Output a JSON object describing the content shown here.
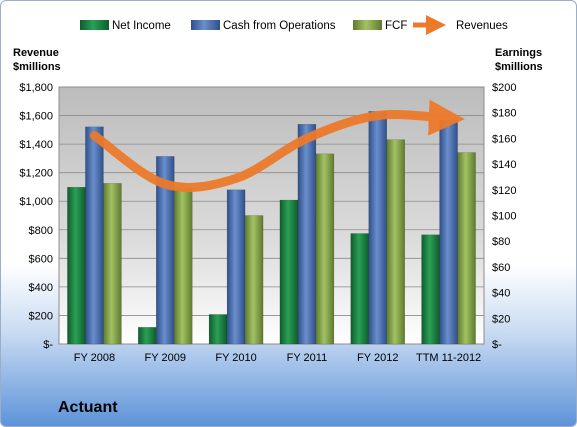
{
  "company_name": "Actuant",
  "colors": {
    "net_income": "#1e8a45",
    "cash_from_operations": "#4f75b8",
    "fcf": "#86a84c",
    "revenues": "#ec7a2a"
  },
  "chart_data": {
    "type": "bar",
    "categories": [
      "FY 2008",
      "FY 2009",
      "FY 2010",
      "FY 2011",
      "FY 2012",
      "TTM 11-2012"
    ],
    "left_axis": {
      "title_line1": "Revenue",
      "title_line2": "$millions",
      "ylim": [
        0,
        1800
      ],
      "ticks": [
        "$-",
        "$200",
        "$400",
        "$600",
        "$800",
        "$1,000",
        "$1,200",
        "$1,400",
        "$1,600",
        "$1,800"
      ]
    },
    "right_axis": {
      "title_line1": "Earnings",
      "title_line2": "$millions",
      "ylim": [
        0,
        200
      ],
      "ticks": [
        "$-",
        "$20",
        "$40",
        "$60",
        "$80",
        "$100",
        "$120",
        "$140",
        "$160",
        "$180",
        "$200"
      ]
    },
    "series": [
      {
        "name": "Net Income",
        "kind": "bar",
        "axis": "right",
        "values": [
          122,
          13,
          23,
          112,
          86,
          85
        ]
      },
      {
        "name": "Cash from Operations",
        "kind": "bar",
        "axis": "right",
        "values": [
          169,
          146,
          120,
          171,
          181,
          174
        ]
      },
      {
        "name": "FCF",
        "kind": "bar",
        "axis": "right",
        "values": [
          125,
          121,
          100,
          148,
          159,
          149
        ]
      },
      {
        "name": "Revenues",
        "kind": "line",
        "axis": "left",
        "values": [
          1460,
          1120,
          1160,
          1440,
          1600,
          1580
        ]
      }
    ],
    "legend": [
      "Net Income",
      "Cash from Operations",
      "FCF",
      "Revenues"
    ],
    "legend_position": "top",
    "grid": true
  }
}
